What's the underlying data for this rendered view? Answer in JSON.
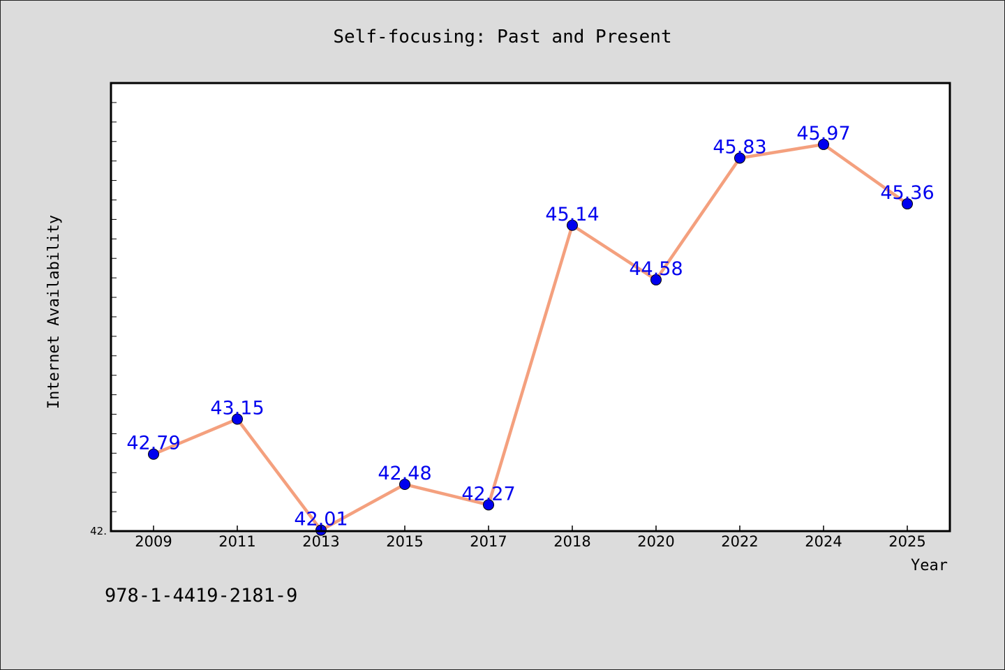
{
  "chart_data": {
    "type": "line",
    "title": "Self-focusing: Past and Present",
    "xlabel": "Year",
    "ylabel": "Internet Availability",
    "categories": [
      "2009",
      "2011",
      "2013",
      "2015",
      "2017",
      "2018",
      "2020",
      "2022",
      "2024",
      "2025"
    ],
    "series": [
      {
        "values": [
          42.79,
          43.15,
          42.01,
          42.48,
          42.27,
          45.14,
          44.58,
          45.83,
          45.97,
          45.36
        ]
      }
    ],
    "data_labels": [
      "42.79",
      "43.15",
      "42.01",
      "42.48",
      "42.27",
      "45.14",
      "44.58",
      "45.83",
      "45.97",
      "45.36"
    ],
    "ytick_label": "42.",
    "ylim": [
      42.0,
      46.6
    ],
    "grid": false,
    "colors": {
      "line": "#f4a07e",
      "marker": "#0000ee",
      "label": "#0000ee",
      "plot_bg": "#ffffff"
    }
  },
  "annotation": "978-1-4419-2181-9"
}
